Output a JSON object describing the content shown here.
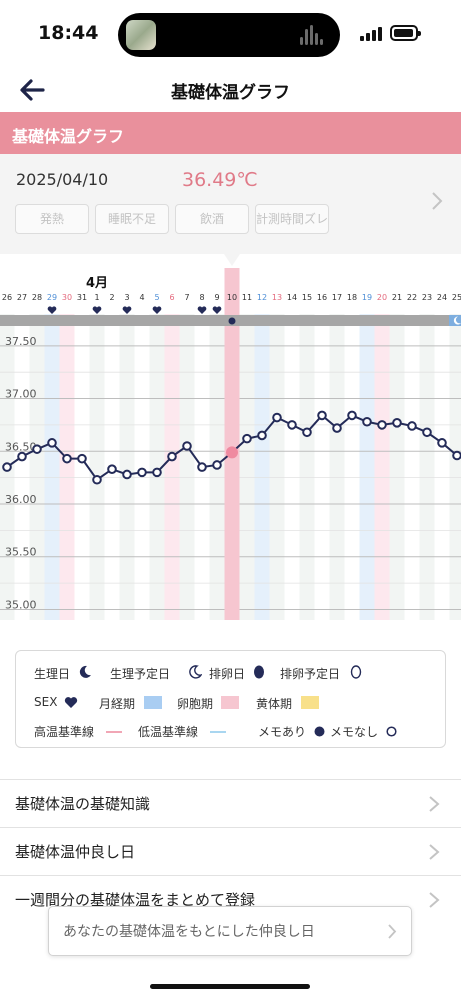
{
  "status_bar": {
    "time": "18:44"
  },
  "nav": {
    "title": "基礎体温グラフ"
  },
  "section": {
    "title": "基礎体温グラフ"
  },
  "info": {
    "date": "2025/04/10",
    "temperature": "36.49℃",
    "tags": [
      "発熱",
      "睡眠不足",
      "飲酒",
      "計測時間ズレ"
    ]
  },
  "chart_data": {
    "type": "line",
    "month_label": "4月",
    "x": [
      "26",
      "27",
      "28",
      "29",
      "30",
      "31",
      "1",
      "2",
      "3",
      "4",
      "5",
      "6",
      "7",
      "8",
      "9",
      "10",
      "11",
      "12",
      "13",
      "14",
      "15",
      "16",
      "17",
      "18",
      "19",
      "20",
      "21",
      "22",
      "23",
      "24",
      "25"
    ],
    "values": [
      36.35,
      36.45,
      36.52,
      36.58,
      36.43,
      36.43,
      36.23,
      36.33,
      36.28,
      36.3,
      36.3,
      36.45,
      36.55,
      36.35,
      36.37,
      36.49,
      36.62,
      36.65,
      36.82,
      36.75,
      36.68,
      36.84,
      36.72,
      36.84,
      36.78,
      36.75,
      36.77,
      36.74,
      36.68,
      36.58,
      36.46
    ],
    "ylim": [
      34.9,
      37.65
    ],
    "y_ticks": [
      "35.00",
      "35.50",
      "36.00",
      "36.50",
      "37.00",
      "37.50"
    ],
    "selected": "10",
    "sex_days": [
      "29",
      "1",
      "3",
      "5",
      "8",
      "9"
    ],
    "menstrual_days": [
      "29",
      "19"
    ],
    "predicted_days": [
      "30",
      "6",
      "20"
    ],
    "fertile_days": [
      "12"
    ],
    "memo_day": "10",
    "moon_day": "25",
    "colors": {
      "line": "#242b58",
      "selected_band": "#f6c6d0",
      "selected_point": "#ef8aa0",
      "blue_band": "#e5f0fb",
      "pink_band": "#fde8ee",
      "alt_band": "#f2f5f3",
      "weekend_sun": "#e46a7e",
      "weekend_sat": "#4f8fd6",
      "top_bar": "#a6a6a6",
      "moon_bg": "#7eaedf"
    }
  },
  "legend": {
    "period": "生理日",
    "period_expected": "生理予定日",
    "ovulation": "排卵日",
    "ovulation_expected": "排卵予定日",
    "sex": "SEX",
    "menstrual_phase": "月経期",
    "follicular_phase": "卵胞期",
    "luteal_phase": "黄体期",
    "high_line": "高温基準線",
    "low_line": "低温基準線",
    "memo_yes": "メモあり",
    "memo_no": "メモなし",
    "colors": {
      "menstrual": "#a9cdf2",
      "follicular": "#f6c6d0",
      "luteal": "#f8e08a",
      "high": "#f1a6b5",
      "low": "#a9d6f0"
    }
  },
  "links": [
    "基礎体温の基礎知識",
    "基礎体温仲良し日",
    "一週間分の基礎体温をまとめて登録"
  ],
  "cta": {
    "label": "あなたの基礎体温をもとにした仲良し日"
  }
}
